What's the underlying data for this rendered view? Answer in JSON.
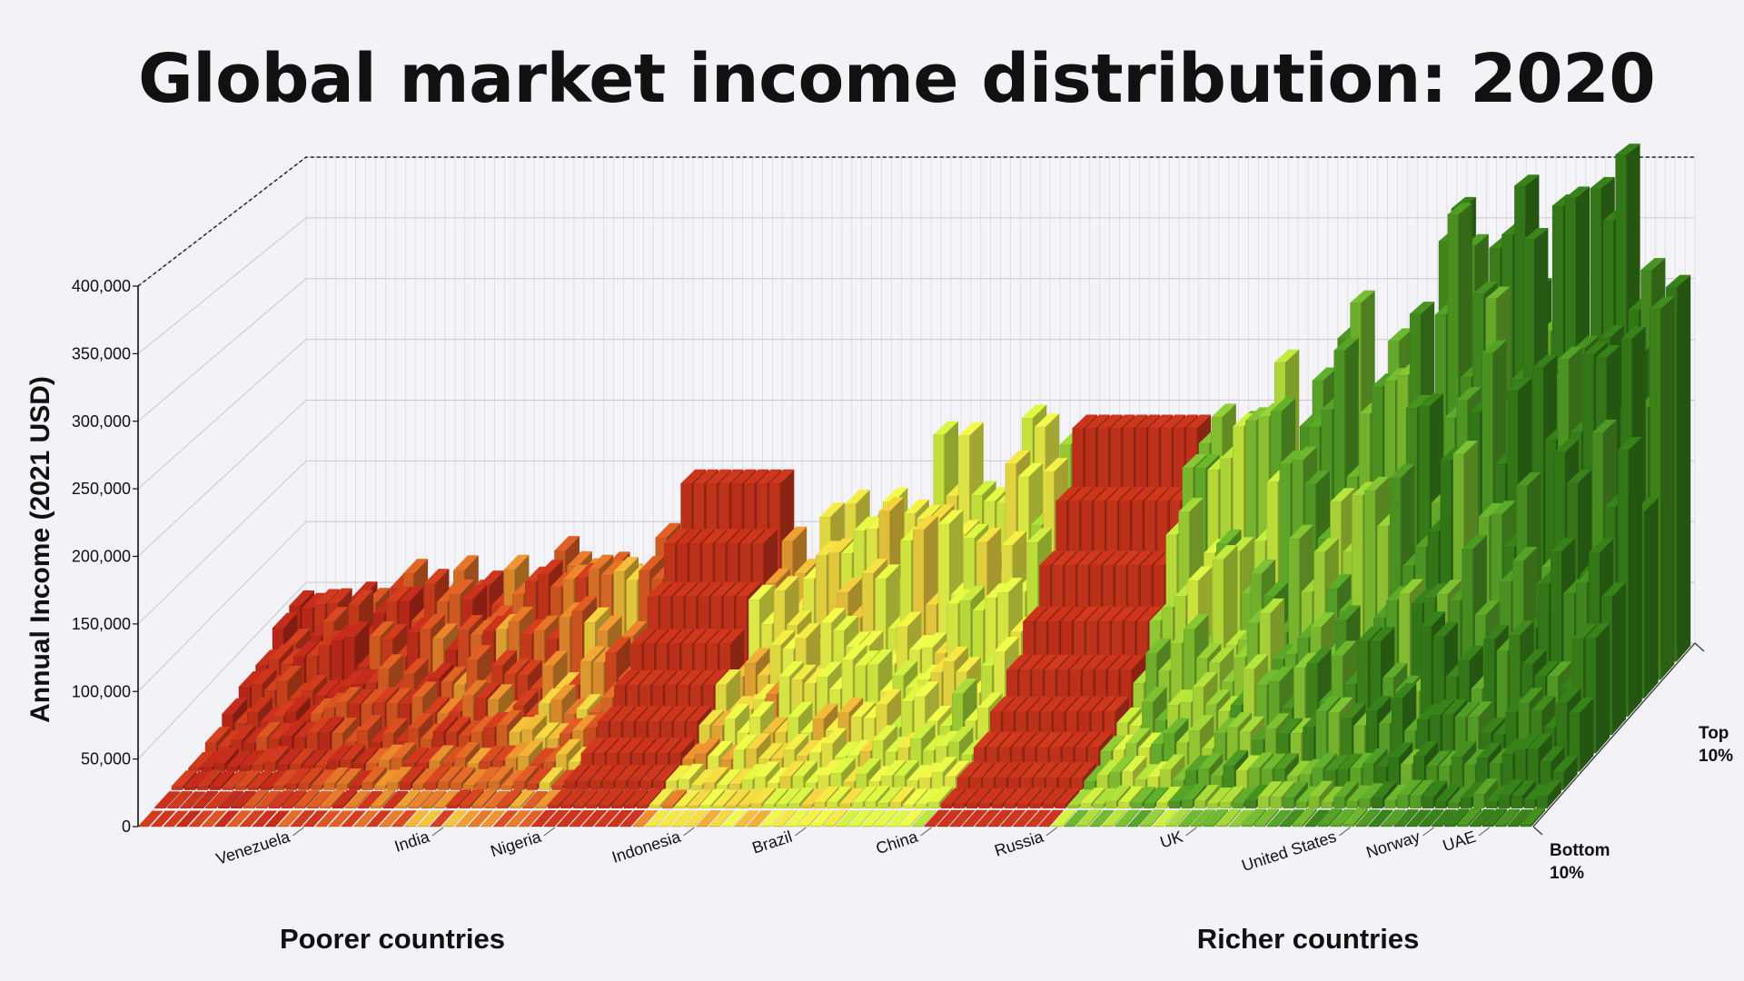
{
  "title": "Global market income distribution: 2020",
  "chart_data": {
    "type": "bar",
    "subtype": "3d-bar",
    "title": "Global market income distribution: 2020",
    "ylabel": "Annual Income (2021 USD)",
    "ylim": [
      0,
      400000
    ],
    "y_ticks": [
      0,
      50000,
      100000,
      150000,
      200000,
      250000,
      300000,
      350000,
      400000
    ],
    "y_tick_labels": [
      "0",
      "50,000",
      "100,000",
      "150,000",
      "200,000",
      "250,000",
      "300,000",
      "350,000",
      "400,000"
    ],
    "depth_labels": {
      "front": "Bottom\n10%",
      "back": "Top\n10%"
    },
    "x_groups": {
      "left": "Poorer countries",
      "right": "Richer countries"
    },
    "countries": [
      {
        "name": "Venezuela",
        "top10": 75000
      },
      {
        "name": "India",
        "top10": 85000
      },
      {
        "name": "Nigeria",
        "top10": 90000
      },
      {
        "name": "Indonesia",
        "top10": 110000
      },
      {
        "name": "Brazil",
        "top10": 170000
      },
      {
        "name": "China",
        "top10": 175000
      },
      {
        "name": "Russia",
        "top10": 175000
      },
      {
        "name": "UK",
        "top10": 255000
      },
      {
        "name": "United States",
        "top10": 380000
      },
      {
        "name": "Norway",
        "top10": 330000
      },
      {
        "name": "UAE",
        "top10": 405000
      }
    ],
    "grid": true,
    "colors": {
      "poor": "#b8321c",
      "mid_low": "#d4641c",
      "mid": "#e7c43a",
      "mid_high": "#d6ec4a",
      "rich": "#4c9a28",
      "richest": "#2f6e16"
    }
  }
}
